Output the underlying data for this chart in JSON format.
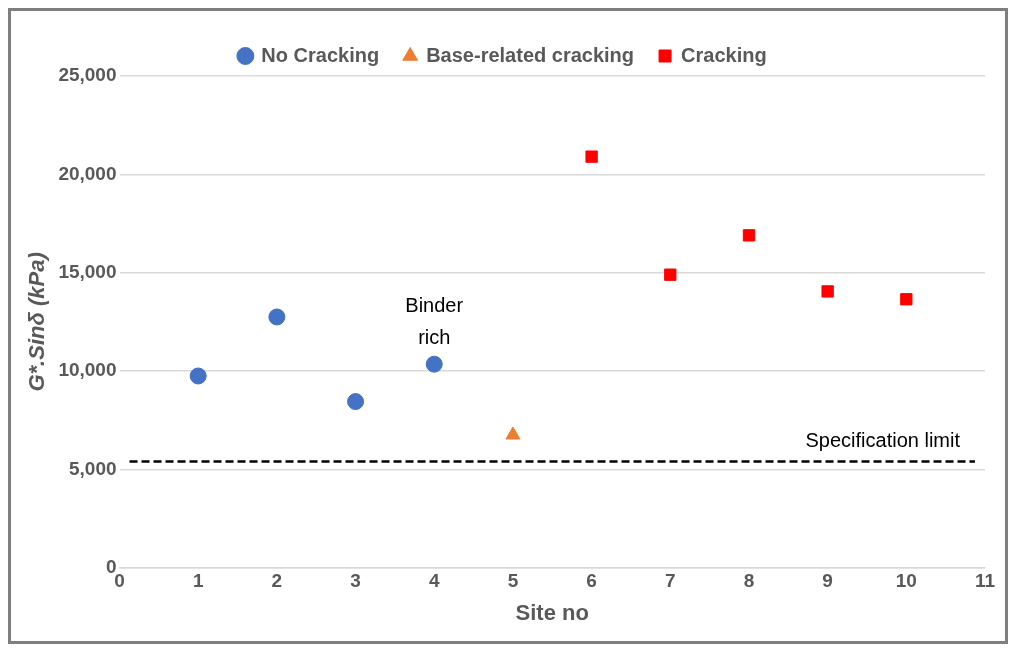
{
  "chart_data": {
    "type": "scatter",
    "xlabel": "Site no",
    "ylabel": "G*.Sinδ (kPa)",
    "xlim": [
      0,
      11
    ],
    "xticks": [
      0,
      1,
      2,
      3,
      4,
      5,
      6,
      7,
      8,
      9,
      10,
      11
    ],
    "ylim": [
      0,
      25000
    ],
    "yticks": [
      0,
      {
        "value": 5000,
        "label": "5,000"
      },
      {
        "value": 10000,
        "label": "10,000"
      },
      {
        "value": 15000,
        "label": "15,000"
      },
      {
        "value": 20000,
        "label": "20,000"
      },
      {
        "value": 25000,
        "label": "25,000"
      }
    ],
    "grid": "y",
    "legend": "top",
    "series": [
      {
        "name": "No Cracking",
        "color": "#4472c4",
        "marker": "circle",
        "x": [
          1,
          2,
          3,
          4
        ],
        "values": [
          9750,
          12750,
          8450,
          10350
        ]
      },
      {
        "name": "Base-related cracking",
        "color": "#ed7d31",
        "marker": "triangle",
        "x": [
          5
        ],
        "values": [
          6750
        ]
      },
      {
        "name": "Cracking",
        "color": "#ff0000",
        "marker": "square",
        "x": [
          6,
          7,
          8,
          9,
          10
        ],
        "values": [
          20900,
          14900,
          16900,
          14050,
          13650
        ]
      }
    ],
    "ref_lines": [
      {
        "axis": "y",
        "value": 5400,
        "label": "Specification limit",
        "color": "#000000",
        "line_style": "dashed"
      }
    ],
    "annotations": [
      {
        "text": "Binder rich",
        "x": 4,
        "y": 10350
      }
    ]
  }
}
